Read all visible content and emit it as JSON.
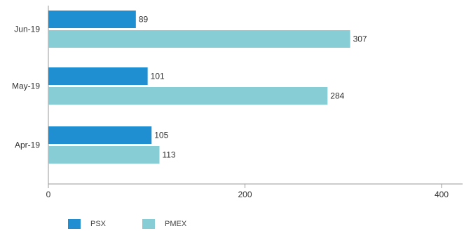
{
  "chart_data": {
    "type": "bar",
    "orientation": "horizontal",
    "categories": [
      "Jun-19",
      "May-19",
      "Apr-19"
    ],
    "series": [
      {
        "name": "PSX",
        "color": "#1f8fd1",
        "values": [
          89,
          101,
          105
        ]
      },
      {
        "name": "PMEX",
        "color": "#86cdd6",
        "values": [
          307,
          284,
          113
        ]
      }
    ],
    "xlim": [
      0,
      400
    ],
    "xticks": [
      0,
      200,
      400
    ],
    "title": "",
    "xlabel": "",
    "ylabel": "",
    "grid": false,
    "legend_position": "bottom-left"
  }
}
